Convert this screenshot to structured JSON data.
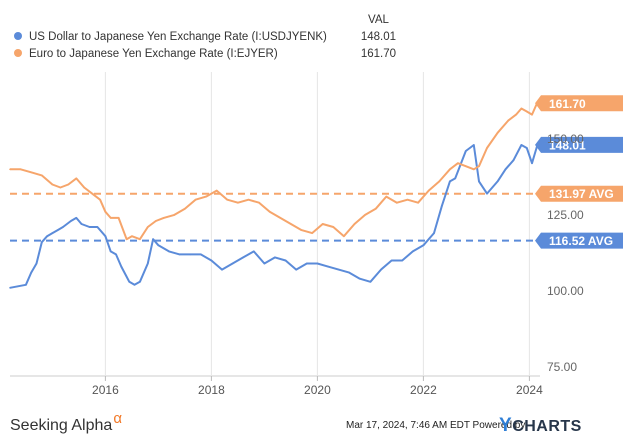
{
  "legend": {
    "header": "VAL",
    "items": [
      {
        "label": "US Dollar to Japanese Yen Exchange Rate (I:USDJYENK)",
        "value": "148.01",
        "color": "#5b8bd9"
      },
      {
        "label": "Euro to Japanese Yen Exchange Rate (I:EJYER)",
        "value": "161.70",
        "color": "#f6a56b"
      }
    ]
  },
  "footer": {
    "brand_text": "Seeking Alpha",
    "brand_symbol": "α",
    "stamp": "Mar 17, 2024, 7:46 AM EDT Powered by",
    "ycharts_y": "Y",
    "ycharts_rest": "CHARTS"
  },
  "chart_data": {
    "type": "line",
    "xlabel": "",
    "ylabel": "",
    "xlim": [
      2014.2,
      2024.2
    ],
    "ylim": [
      72,
      172
    ],
    "x_ticks": [
      2016,
      2018,
      2020,
      2022,
      2024
    ],
    "x_tick_labels": [
      "2016",
      "2018",
      "2020",
      "2022",
      "2024"
    ],
    "y_ticks": [
      75,
      100,
      125,
      150
    ],
    "y_tick_labels": [
      "75.00",
      "100.00",
      "125.00",
      "150.00"
    ],
    "grid": "vertical",
    "series": [
      {
        "name": "US Dollar to Japanese Yen Exchange Rate (I:USDJYENK)",
        "color": "#5b8bd9",
        "last_label": "148.01",
        "avg": 116.52,
        "avg_label": "116.52 AVG",
        "x": [
          2014.2,
          2014.35,
          2014.5,
          2014.6,
          2014.7,
          2014.8,
          2014.9,
          2015.0,
          2015.1,
          2015.2,
          2015.35,
          2015.45,
          2015.55,
          2015.7,
          2015.85,
          2016.0,
          2016.1,
          2016.2,
          2016.3,
          2016.45,
          2016.55,
          2016.65,
          2016.8,
          2016.9,
          2017.0,
          2017.2,
          2017.4,
          2017.6,
          2017.8,
          2018.0,
          2018.2,
          2018.4,
          2018.6,
          2018.8,
          2019.0,
          2019.2,
          2019.4,
          2019.6,
          2019.8,
          2020.0,
          2020.2,
          2020.4,
          2020.6,
          2020.8,
          2021.0,
          2021.2,
          2021.4,
          2021.6,
          2021.8,
          2022.0,
          2022.2,
          2022.35,
          2022.5,
          2022.6,
          2022.8,
          2022.95,
          2023.05,
          2023.2,
          2023.4,
          2023.55,
          2023.7,
          2023.85,
          2023.95,
          2024.05,
          2024.15,
          2024.2
        ],
        "y": [
          101,
          101.5,
          102,
          106,
          109,
          116,
          118,
          119,
          120,
          121,
          123,
          124,
          122,
          121,
          121,
          118,
          113,
          112,
          108,
          103,
          102,
          103,
          109,
          117,
          115,
          113,
          112,
          112,
          112,
          110,
          107,
          109,
          111,
          113,
          109,
          111,
          110,
          107,
          109,
          109,
          108,
          107,
          106,
          104,
          103,
          107,
          110,
          110,
          113,
          115,
          119,
          128,
          136,
          137,
          146,
          148,
          136,
          132,
          136,
          140,
          143,
          148,
          147,
          142,
          148,
          148.01
        ]
      },
      {
        "name": "Euro to Japanese Yen Exchange Rate (I:EJYER)",
        "color": "#f6a56b",
        "last_label": "161.70",
        "avg": 131.97,
        "avg_label": "131.97 AVG",
        "x": [
          2014.2,
          2014.4,
          2014.6,
          2014.8,
          2015.0,
          2015.15,
          2015.3,
          2015.45,
          2015.6,
          2015.75,
          2015.9,
          2016.0,
          2016.1,
          2016.25,
          2016.4,
          2016.5,
          2016.65,
          2016.8,
          2016.95,
          2017.1,
          2017.3,
          2017.5,
          2017.7,
          2017.9,
          2018.1,
          2018.3,
          2018.5,
          2018.7,
          2018.9,
          2019.1,
          2019.3,
          2019.5,
          2019.7,
          2019.9,
          2020.1,
          2020.3,
          2020.5,
          2020.7,
          2020.9,
          2021.1,
          2021.3,
          2021.5,
          2021.7,
          2021.9,
          2022.1,
          2022.3,
          2022.5,
          2022.65,
          2022.8,
          2022.95,
          2023.05,
          2023.2,
          2023.4,
          2023.6,
          2023.75,
          2023.85,
          2023.95,
          2024.05,
          2024.15,
          2024.2
        ],
        "y": [
          140,
          140,
          139,
          138,
          135,
          134,
          135,
          137,
          134,
          132,
          130,
          126,
          124,
          124,
          117,
          118,
          117,
          121,
          123,
          124,
          125,
          127,
          130,
          131,
          133,
          130,
          129,
          130,
          129,
          126,
          124,
          122,
          120,
          119,
          122,
          121,
          118,
          122,
          125,
          127,
          131,
          129,
          130,
          129,
          133,
          136,
          140,
          142,
          141,
          140,
          141,
          147,
          152,
          156,
          158,
          160,
          159,
          158,
          162,
          161.7
        ]
      }
    ]
  }
}
